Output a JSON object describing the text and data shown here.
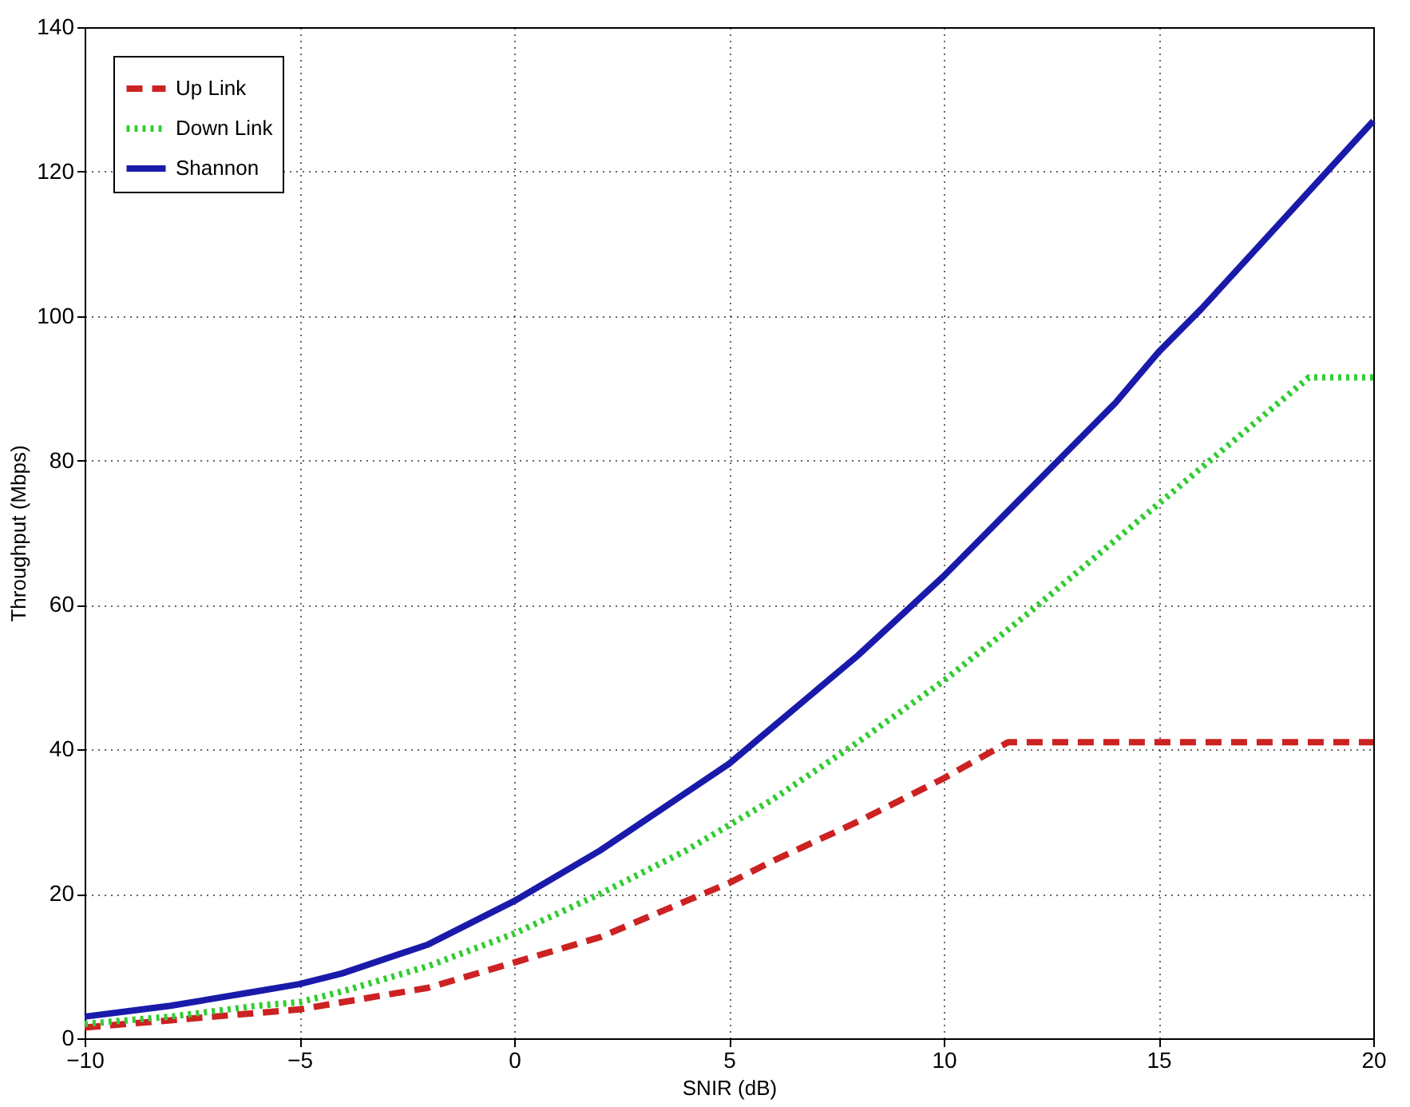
{
  "chart_data": {
    "type": "line",
    "xlabel": "SNIR (dB)",
    "ylabel": "Throughput (Mbps)",
    "xlim": [
      -10,
      20
    ],
    "ylim": [
      0,
      140
    ],
    "xticks": [
      -10,
      -5,
      0,
      5,
      10,
      15,
      20
    ],
    "yticks": [
      0,
      20,
      40,
      60,
      80,
      100,
      120,
      140
    ],
    "grid": true,
    "legend": "top left",
    "marker": "none",
    "series": [
      {
        "name": "Up Link",
        "color": "#cc2222",
        "line_style": "dashed",
        "x": [
          -10,
          -8,
          -6,
          -5,
          -4,
          -2,
          0,
          2,
          4,
          5,
          6,
          8,
          10,
          11.5,
          14,
          17,
          20
        ],
        "values": [
          1.5,
          2.5,
          3.5,
          4,
          5,
          7,
          10.5,
          14,
          19,
          21.5,
          24.5,
          30,
          36,
          41,
          41,
          41,
          41
        ]
      },
      {
        "name": "Down Link",
        "color": "#33cc33",
        "line_style": "dotted",
        "x": [
          -10,
          -8,
          -6,
          -5,
          -4,
          -2,
          0,
          2,
          4,
          5,
          6,
          8,
          10,
          12,
          14,
          15,
          16,
          18,
          18.5,
          20
        ],
        "values": [
          2,
          3,
          4.5,
          5,
          6.5,
          10,
          14.5,
          20,
          26,
          29.5,
          33,
          41,
          49.5,
          59,
          69,
          74,
          79,
          89,
          91.5,
          91.5
        ]
      },
      {
        "name": "Shannon",
        "color": "#1a1aaa",
        "line_style": "solid",
        "x": [
          -10,
          -8,
          -6,
          -5,
          -4,
          -2,
          0,
          2,
          4,
          5,
          6,
          8,
          10,
          12,
          14,
          15,
          16,
          18,
          20
        ],
        "values": [
          3,
          4.5,
          6.5,
          7.5,
          9,
          13,
          19,
          26,
          34,
          38,
          43,
          53,
          64,
          76,
          88,
          95,
          101,
          114,
          127
        ]
      }
    ]
  }
}
